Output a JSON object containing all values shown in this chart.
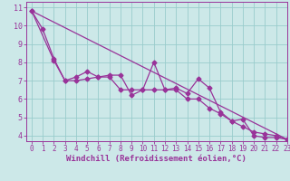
{
  "xlabel": "Windchill (Refroidissement éolien,°C)",
  "xlim": [
    -0.5,
    23
  ],
  "ylim": [
    3.7,
    11.3
  ],
  "xticks": [
    0,
    1,
    2,
    3,
    4,
    5,
    6,
    7,
    8,
    9,
    10,
    11,
    12,
    13,
    14,
    15,
    16,
    17,
    18,
    19,
    20,
    21,
    22,
    23
  ],
  "yticks": [
    4,
    5,
    6,
    7,
    8,
    9,
    10,
    11
  ],
  "line_color": "#993399",
  "bg_color": "#cce8e8",
  "grid_color": "#99cccc",
  "line1_x": [
    0,
    1,
    2,
    3,
    4,
    5,
    6,
    7,
    8,
    9,
    10,
    11,
    12,
    13,
    14,
    15,
    16,
    17,
    18,
    19,
    20,
    21,
    22,
    23
  ],
  "line1_y": [
    10.8,
    9.8,
    8.2,
    7.0,
    7.2,
    7.5,
    7.2,
    7.3,
    7.3,
    6.2,
    6.5,
    8.0,
    6.5,
    6.6,
    6.3,
    7.1,
    6.6,
    5.3,
    4.8,
    4.9,
    4.0,
    3.9,
    3.9,
    3.8
  ],
  "line2_x": [
    0,
    2,
    3,
    4,
    5,
    6,
    7,
    8,
    9,
    10,
    11,
    12,
    13,
    14,
    15,
    16,
    17,
    18,
    19,
    20,
    21,
    22,
    23
  ],
  "line2_y": [
    10.8,
    8.1,
    7.0,
    7.0,
    7.1,
    7.2,
    7.2,
    6.5,
    6.5,
    6.5,
    6.5,
    6.5,
    6.5,
    6.0,
    6.0,
    5.5,
    5.2,
    4.8,
    4.5,
    4.2,
    4.1,
    4.0,
    3.8
  ],
  "line3_x": [
    0,
    23
  ],
  "line3_y": [
    10.8,
    3.8
  ],
  "marker": "D",
  "markersize": 2.5,
  "tick_fontsize": 5.5,
  "xlabel_fontsize": 6.5
}
